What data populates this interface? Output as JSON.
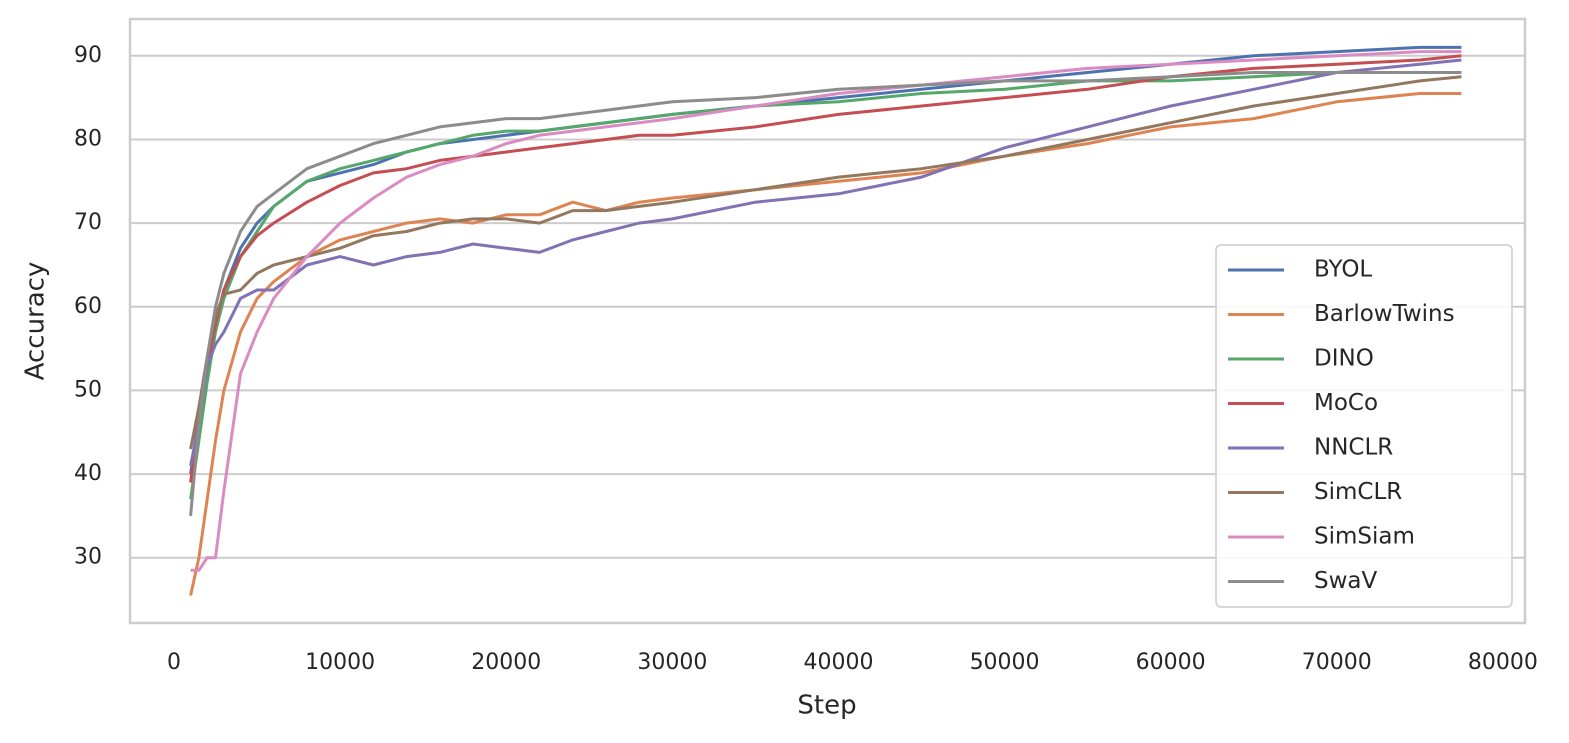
{
  "chart_data": {
    "type": "line",
    "x_label": "Step",
    "y_label": "Accuracy",
    "x": [
      1000,
      1500,
      2000,
      2500,
      3000,
      4000,
      5000,
      6000,
      8000,
      10000,
      12000,
      14000,
      16000,
      18000,
      20000,
      22000,
      24000,
      26000,
      28000,
      30000,
      35000,
      40000,
      45000,
      50000,
      55000,
      60000,
      65000,
      70000,
      75000,
      77500
    ],
    "series": [
      {
        "name": "BYOL",
        "color": "#4c72b0",
        "values": [
          40,
          47,
          53,
          58,
          62,
          67,
          70,
          72,
          75,
          76,
          77,
          78.5,
          79.5,
          80,
          80.5,
          81,
          81.5,
          82,
          82.5,
          83,
          84,
          85,
          86,
          87,
          88,
          89,
          90,
          90.5,
          91,
          91
        ]
      },
      {
        "name": "BarlowTwins",
        "color": "#dd8452",
        "values": [
          25.5,
          30,
          37,
          44,
          50,
          57,
          61,
          63,
          66,
          68,
          69,
          70,
          70.5,
          70,
          71,
          71,
          72.5,
          71.5,
          72.5,
          73,
          74,
          75,
          76,
          78,
          79.5,
          81.5,
          82.5,
          84.5,
          85.5,
          85.5
        ]
      },
      {
        "name": "DINO",
        "color": "#55a868",
        "values": [
          37,
          44,
          51,
          57,
          61,
          66,
          69,
          72,
          75,
          76.5,
          77.5,
          78.5,
          79.5,
          80.5,
          81,
          81,
          81.5,
          82,
          82.5,
          83,
          84,
          84.5,
          85.5,
          86,
          87,
          87,
          87.5,
          88,
          88,
          88
        ]
      },
      {
        "name": "MoCo",
        "color": "#c44e52",
        "values": [
          39,
          47,
          53,
          58,
          62,
          66,
          68.5,
          70,
          72.5,
          74.5,
          76,
          76.5,
          77.5,
          78,
          78.5,
          79,
          79.5,
          80,
          80.5,
          80.5,
          81.5,
          83,
          84,
          85,
          86,
          87.5,
          88.5,
          89,
          89.5,
          90
        ]
      },
      {
        "name": "NNCLR",
        "color": "#8172b3",
        "values": [
          41,
          46,
          53,
          55.5,
          57,
          61,
          62,
          62,
          65,
          66,
          65,
          66,
          66.5,
          67.5,
          67,
          66.5,
          68,
          69,
          70,
          70.5,
          72.5,
          73.5,
          75.5,
          79,
          81.5,
          84,
          86,
          88,
          89,
          89.5
        ]
      },
      {
        "name": "SimCLR",
        "color": "#937860",
        "values": [
          43,
          48,
          54,
          59,
          61.5,
          62,
          64,
          65,
          66,
          67,
          68.5,
          69,
          70,
          70.5,
          70.5,
          70,
          71.5,
          71.5,
          72,
          72.5,
          74,
          75.5,
          76.5,
          78,
          80,
          82,
          84,
          85.5,
          87,
          87.5
        ]
      },
      {
        "name": "SimSiam",
        "color": "#da8bc3",
        "values": [
          28.5,
          28.5,
          30,
          30,
          38,
          52,
          57,
          61,
          66,
          70,
          73,
          75.5,
          77,
          78,
          79.5,
          80.5,
          81,
          81.5,
          82,
          82.5,
          84,
          85.5,
          86.5,
          87.5,
          88.5,
          89,
          89.5,
          90,
          90.5,
          90.5
        ]
      },
      {
        "name": "SwaV",
        "color": "#8c8c8c",
        "values": [
          35,
          46,
          54,
          60,
          64,
          69,
          72,
          73.5,
          76.5,
          78,
          79.5,
          80.5,
          81.5,
          82,
          82.5,
          82.5,
          83,
          83.5,
          84,
          84.5,
          85,
          86,
          86.5,
          87,
          87,
          87.5,
          88,
          88,
          88,
          88
        ]
      }
    ],
    "xlim": [
      -2650,
      81330
    ],
    "ylim": [
      22.2,
      94.4
    ],
    "xticks": [
      0,
      10000,
      20000,
      30000,
      40000,
      50000,
      60000,
      70000,
      80000
    ],
    "yticks": [
      30,
      40,
      50,
      60,
      70,
      80,
      90
    ],
    "grid": "y",
    "legend": "lower right"
  }
}
